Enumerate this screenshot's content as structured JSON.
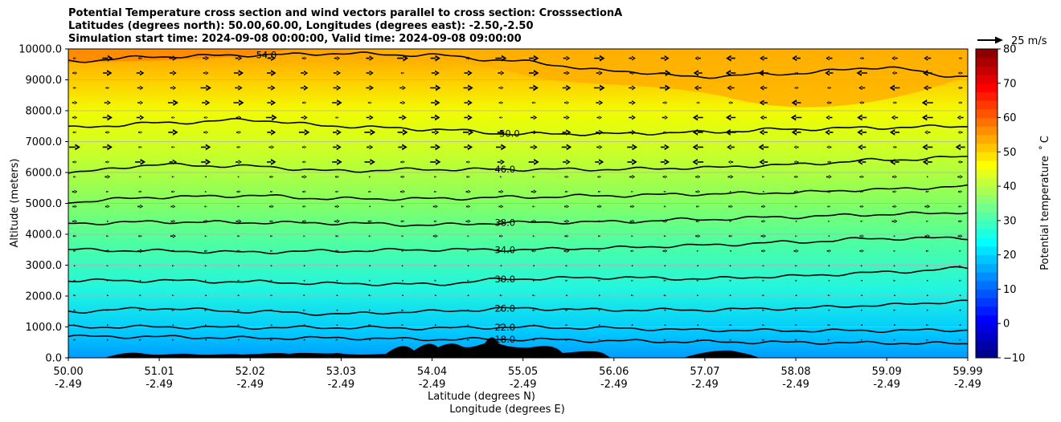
{
  "chart_data": {
    "type": "heatmap",
    "title_lines": [
      "Potential Temperature cross section and wind vectors parallel to cross section: CrosssectionA",
      "Latitudes (degrees north): 50.00,60.00, Longitudes (degrees east): -2.50,-2.50",
      "Simulation start time: 2024-09-08 00:00:00, Valid time: 2024-09-08 09:00:00"
    ],
    "xlabel": "Latitude (degrees N)",
    "xlabel2": "Longitude (degrees E)",
    "ylabel": "Altitude (meters)",
    "xlim": [
      50.0,
      59.99
    ],
    "ylim": [
      0,
      10000
    ],
    "x_tick_values": [
      50.0,
      51.01,
      52.02,
      53.03,
      54.04,
      55.05,
      56.06,
      57.07,
      58.08,
      59.09,
      59.99
    ],
    "x_tick_labels": [
      "50.00",
      "51.01",
      "52.02",
      "53.03",
      "54.04",
      "55.05",
      "56.06",
      "57.07",
      "58.08",
      "59.09",
      "59.99"
    ],
    "x_tick_labels2": [
      "-2.49",
      "-2.49",
      "-2.49",
      "-2.49",
      "-2.49",
      "-2.49",
      "-2.49",
      "-2.49",
      "-2.49",
      "-2.49",
      "-2.49"
    ],
    "y_tick_values": [
      0,
      1000,
      2000,
      3000,
      4000,
      5000,
      6000,
      7000,
      8000,
      9000,
      10000
    ],
    "y_tick_labels": [
      "0.0",
      "1000.0",
      "2000.0",
      "3000.0",
      "4000.0",
      "5000.0",
      "6000.0",
      "7000.0",
      "8000.0",
      "9000.0",
      "10000.0"
    ],
    "grid": "horizontal",
    "colorbar": {
      "label": "Potential temperature $^\\circ$C",
      "range": [
        -10,
        80
      ],
      "step": 2.5,
      "tick_values": [
        -10,
        0,
        10,
        20,
        30,
        40,
        50,
        60,
        70,
        80
      ],
      "tick_labels": [
        "−10",
        "0",
        "10",
        "20",
        "30",
        "40",
        "50",
        "60",
        "70",
        "80"
      ]
    },
    "quiver_key": "25 m/s",
    "contours": [
      {
        "level": 18,
        "label": "18.0",
        "label_x": 54.85,
        "alt": [
          690,
          680,
          640,
          640,
          600,
          600,
          550,
          520,
          500,
          480,
          460
        ]
      },
      {
        "level": 22,
        "label": "22.0",
        "label_x": 54.85,
        "alt": [
          1000,
          1000,
          980,
          980,
          960,
          990,
          960,
          900,
          880,
          880,
          900
        ]
      },
      {
        "level": 26,
        "label": "26.0",
        "label_x": 54.85,
        "alt": [
          1500,
          1600,
          1500,
          1420,
          1500,
          1600,
          1550,
          1550,
          1600,
          1700,
          1830
        ]
      },
      {
        "level": 30,
        "label": "30.0",
        "label_x": 54.85,
        "alt": [
          2500,
          2500,
          2460,
          2400,
          2380,
          2560,
          2600,
          2560,
          2640,
          2760,
          2900
        ]
      },
      {
        "level": 34,
        "label": "34.0",
        "label_x": 54.85,
        "alt": [
          3500,
          3460,
          3420,
          3460,
          3500,
          3500,
          3560,
          3640,
          3740,
          3860,
          3880
        ]
      },
      {
        "level": 38,
        "label": "38.0",
        "label_x": 54.85,
        "alt": [
          4350,
          4400,
          4380,
          4360,
          4300,
          4380,
          4400,
          4480,
          4560,
          4640,
          4710
        ]
      },
      {
        "level": 42,
        "label": "",
        "label_x": 0,
        "alt": [
          5050,
          5200,
          5250,
          5150,
          5150,
          5200,
          5250,
          5300,
          5350,
          5450,
          5550
        ]
      },
      {
        "level": 46,
        "label": "46.0",
        "label_x": 54.85,
        "alt": [
          6000,
          6250,
          6200,
          6050,
          6100,
          6100,
          6100,
          6150,
          6250,
          6400,
          6500
        ]
      },
      {
        "level": 50,
        "label": "50.0",
        "label_x": 54.9,
        "alt": [
          7450,
          7600,
          7700,
          7500,
          7400,
          7250,
          7250,
          7300,
          7400,
          7450,
          7500
        ]
      },
      {
        "level": 54,
        "label": "54.0",
        "label_x": 52.2,
        "alt": [
          9600,
          9750,
          9800,
          9850,
          9800,
          9600,
          9300,
          9100,
          9200,
          9400,
          9100
        ]
      }
    ]
  }
}
